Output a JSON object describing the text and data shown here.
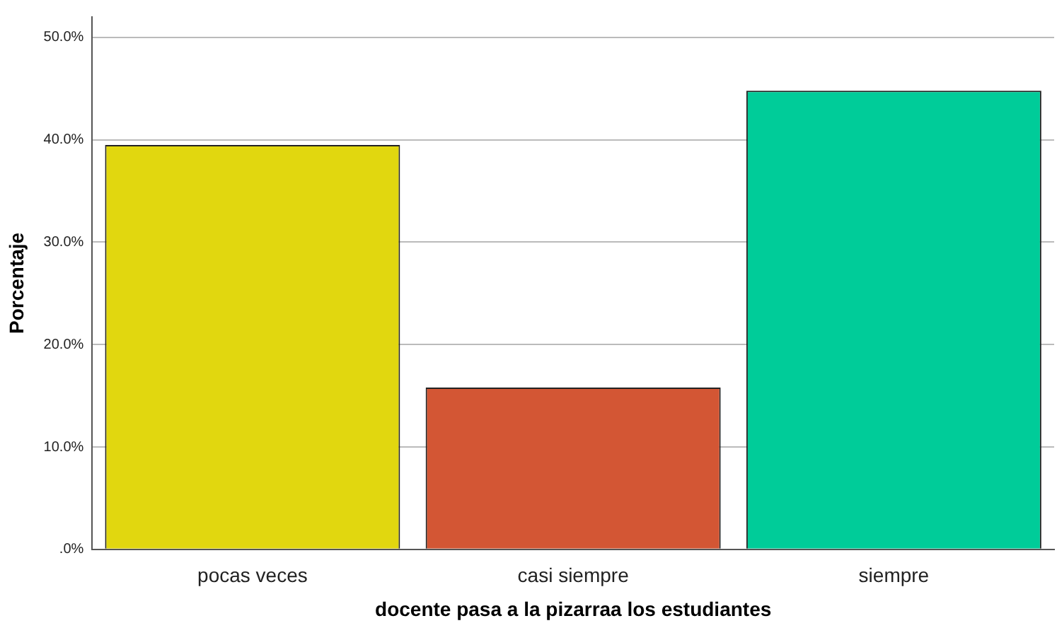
{
  "chart_data": {
    "type": "bar",
    "xlabel": "docente pasa a la pizarraa los estudiantes",
    "ylabel": "Porcentaje",
    "categories": [
      "pocas veces",
      "casi siempre",
      "siempre"
    ],
    "values": [
      39.5,
      15.8,
      44.8
    ],
    "colors": [
      "#e1d70f",
      "#d35634",
      "#00cc99"
    ],
    "ylim": [
      0,
      52
    ],
    "yticks": [
      {
        "value": 0,
        "label": ".0%"
      },
      {
        "value": 10,
        "label": "10.0%"
      },
      {
        "value": 20,
        "label": "20.0%"
      },
      {
        "value": 30,
        "label": "30.0%"
      },
      {
        "value": 40,
        "label": "40.0%"
      },
      {
        "value": 50,
        "label": "50.0%"
      }
    ],
    "grid": "y",
    "legend": false
  }
}
